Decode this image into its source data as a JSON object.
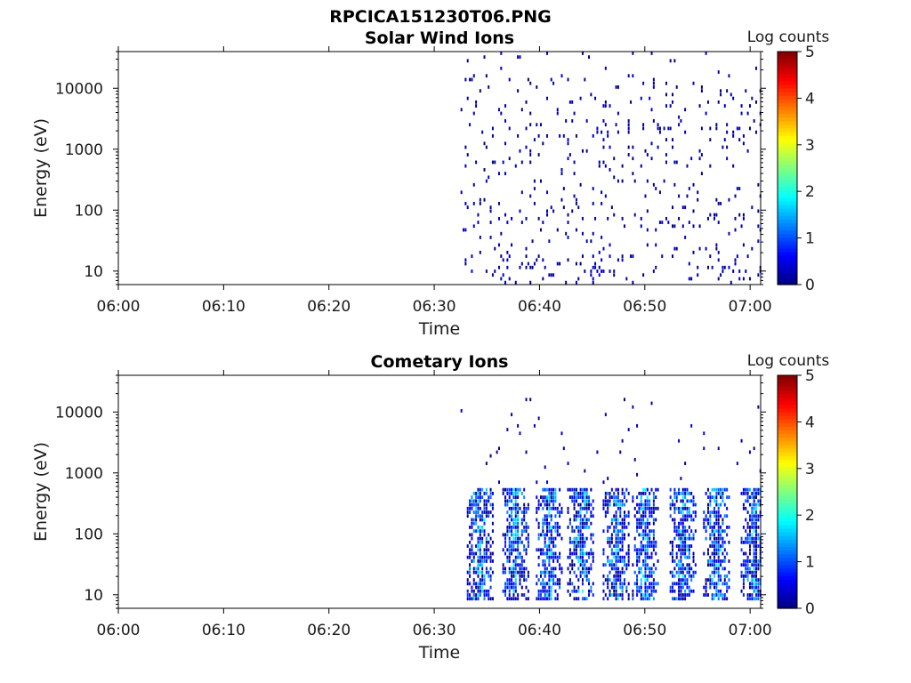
{
  "figure": {
    "title": "RPCICA151230T06.PNG"
  },
  "chart_data": [
    {
      "type": "heatmap",
      "title": "Solar Wind Ions",
      "xlabel": "Time",
      "ylabel": "Energy (eV)",
      "x_ticks": [
        "06:00",
        "06:10",
        "06:20",
        "06:30",
        "06:40",
        "06:50",
        "07:00"
      ],
      "x_range_minutes": [
        0,
        61
      ],
      "y_scale": "log",
      "y_ticks": [
        10,
        100,
        1000,
        10000
      ],
      "y_tick_labels": [
        "10",
        "100",
        "1000",
        "10000"
      ],
      "ylim": [
        6,
        40000
      ],
      "data_start_minute": 32.5,
      "colorbar": {
        "label": "Log counts",
        "min": 0,
        "max": 5,
        "ticks": [
          "0",
          "1",
          "2",
          "3",
          "4",
          "5"
        ]
      },
      "pattern": "sparse",
      "seed": 17,
      "value_range": [
        0,
        0.4
      ],
      "grid": false
    },
    {
      "type": "heatmap",
      "title": "Cometary Ions",
      "xlabel": "Time",
      "ylabel": "Energy (eV)",
      "x_ticks": [
        "06:00",
        "06:10",
        "06:20",
        "06:30",
        "06:40",
        "06:50",
        "07:00"
      ],
      "x_range_minutes": [
        0,
        61
      ],
      "y_scale": "log",
      "y_ticks": [
        10,
        100,
        1000,
        10000
      ],
      "y_tick_labels": [
        "10",
        "100",
        "1000",
        "10000"
      ],
      "ylim": [
        6,
        40000
      ],
      "data_start_minute": 32.5,
      "colorbar": {
        "label": "Log counts",
        "min": 0,
        "max": 5,
        "ticks": [
          "0",
          "1",
          "2",
          "3",
          "4",
          "5"
        ]
      },
      "pattern": "periodic",
      "seed": 41,
      "burst_center_minutes": [
        34.3,
        37.6,
        40.8,
        43.9,
        47.2,
        50.0,
        53.5,
        56.8,
        60.3
      ],
      "burst_energy_range_eV": [
        7,
        500
      ],
      "burst_value_range": [
        0,
        2.2
      ],
      "grid": false
    }
  ]
}
